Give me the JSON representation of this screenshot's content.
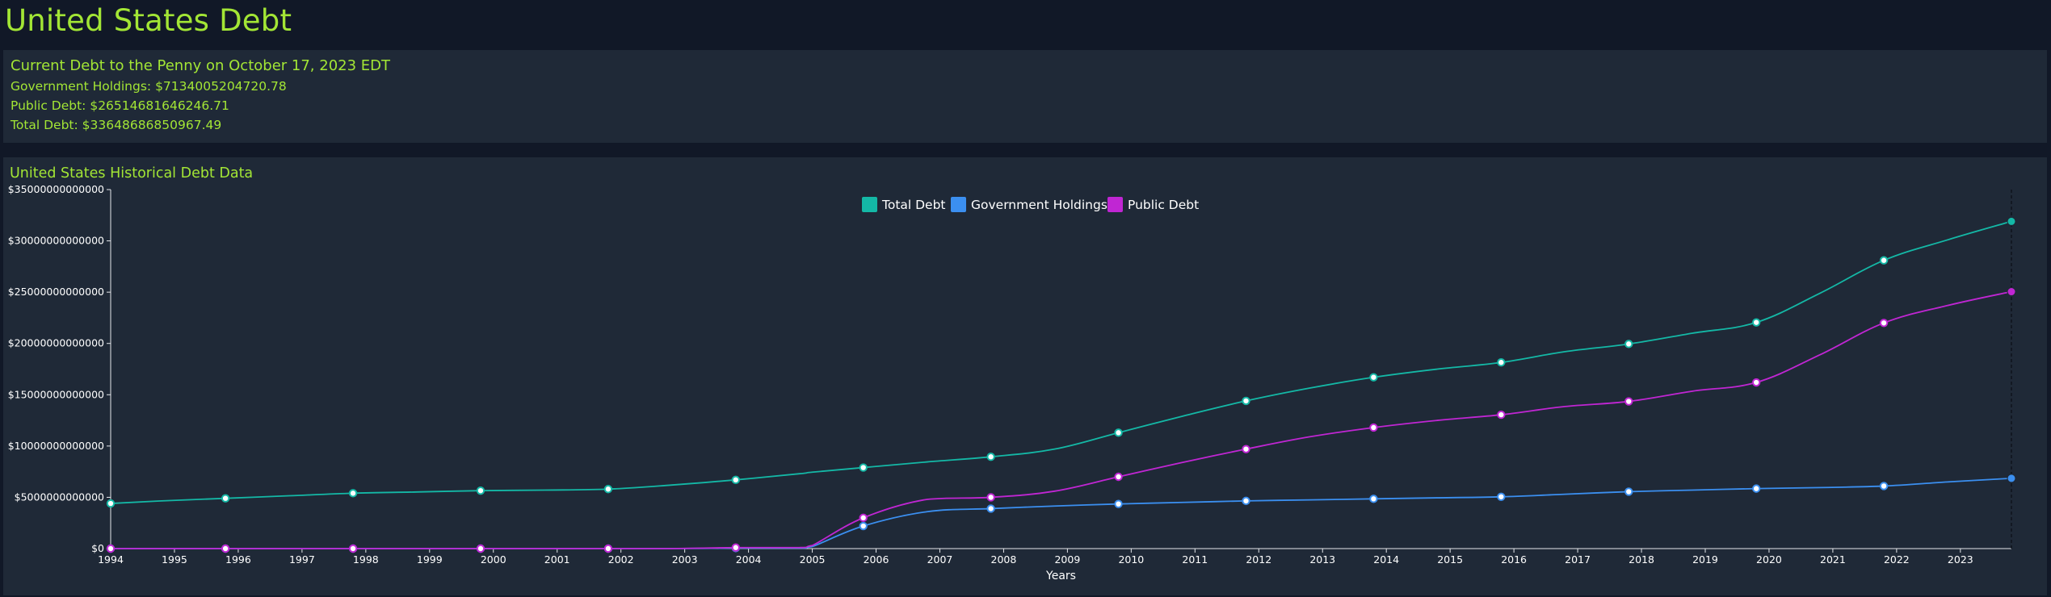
{
  "page": {
    "title": "United States Debt"
  },
  "current": {
    "heading": "Current Debt to the Penny on October 17, 2023 EDT",
    "government_holdings": "Government Holdings: $7134005204720.78",
    "public_debt": "Public Debt: $26514681646246.71",
    "total_debt": "Total Debt: $33648686850967.49"
  },
  "chart_section": {
    "heading": "United States Historical Debt Data"
  },
  "colors": {
    "total": "#14b8a6",
    "holdings": "#3b8ff0",
    "public": "#c026d3",
    "accent": "#a3e635"
  },
  "chart_data": {
    "type": "line",
    "title": "United States Historical Debt Data",
    "xlabel": "Years",
    "ylabel": "",
    "ylim": [
      0,
      35000000000000
    ],
    "xlim": [
      1994.0,
      2023.8
    ],
    "y_ticks": [
      0,
      5000000000000,
      10000000000000,
      15000000000000,
      20000000000000,
      25000000000000,
      30000000000000,
      35000000000000
    ],
    "y_tick_labels": [
      "$0",
      "$5000000000000",
      "$10000000000000",
      "$15000000000000",
      "$20000000000000",
      "$25000000000000",
      "$30000000000000",
      "$35000000000000"
    ],
    "x_ticks": [
      "1994",
      "1995",
      "1996",
      "1997",
      "1998",
      "1999",
      "2000",
      "2001",
      "2002",
      "2003",
      "2004",
      "2005",
      "2006",
      "2007",
      "2008",
      "2009",
      "2010",
      "2011",
      "2012",
      "2013",
      "2014",
      "2015",
      "2016",
      "2017",
      "2018",
      "2019",
      "2020",
      "2021",
      "2022",
      "2023"
    ],
    "legend": [
      "Total Debt",
      "Government Holdings",
      "Public Debt"
    ],
    "legend_position": "top-center",
    "grid": false,
    "x": [
      1994.0,
      1994.8,
      1995.8,
      1996.8,
      1997.8,
      1998.8,
      1999.8,
      2000.8,
      2001.8,
      2002.8,
      2003.8,
      2004.8,
      2005.0,
      2005.8,
      2006.8,
      2007.8,
      2008.8,
      2009.8,
      2010.8,
      2011.8,
      2012.8,
      2013.8,
      2014.8,
      2015.8,
      2016.8,
      2017.8,
      2018.8,
      2019.8,
      2020.8,
      2021.8,
      2022.8,
      2023.8
    ],
    "series": [
      {
        "name": "Total Debt",
        "values": [
          4400000000000,
          4650000000000,
          4900000000000,
          5150000000000,
          5400000000000,
          5520000000000,
          5650000000000,
          5700000000000,
          5800000000000,
          6200000000000,
          6700000000000,
          7300000000000,
          7450000000000,
          7900000000000,
          8450000000000,
          8950000000000,
          9700000000000,
          11300000000000,
          12900000000000,
          14400000000000,
          15650000000000,
          16700000000000,
          17500000000000,
          18150000000000,
          19200000000000,
          19950000000000,
          21000000000000,
          22050000000000,
          24900000000000,
          28100000000000,
          30100000000000,
          31900000000000
        ],
        "markers": [
          1994.0,
          1995.8,
          1997.8,
          1999.8,
          2001.8,
          2003.8,
          2005.8,
          2007.8,
          2009.8,
          2011.8,
          2013.8,
          2015.8,
          2017.8,
          2019.8,
          2021.8,
          2023.8
        ]
      },
      {
        "name": "Government Holdings",
        "values": [
          0,
          0,
          0,
          0,
          0,
          0,
          0,
          0,
          0,
          0,
          50000000000,
          50000000000,
          200000000000,
          2200000000000,
          3600000000000,
          3900000000000,
          4150000000000,
          4350000000000,
          4500000000000,
          4650000000000,
          4750000000000,
          4850000000000,
          4950000000000,
          5050000000000,
          5300000000000,
          5550000000000,
          5700000000000,
          5850000000000,
          5950000000000,
          6100000000000,
          6500000000000,
          6850000000000
        ],
        "markers": [
          1994.0,
          1995.8,
          1997.8,
          1999.8,
          2001.8,
          2003.8,
          2005.8,
          2007.8,
          2009.8,
          2011.8,
          2013.8,
          2015.8,
          2017.8,
          2019.8,
          2021.8,
          2023.8
        ]
      },
      {
        "name": "Public Debt",
        "values": [
          0,
          0,
          0,
          0,
          0,
          0,
          0,
          0,
          0,
          0,
          100000000000,
          100000000000,
          300000000000,
          3000000000000,
          4800000000000,
          5000000000000,
          5600000000000,
          7000000000000,
          8400000000000,
          9700000000000,
          10900000000000,
          11800000000000,
          12500000000000,
          13050000000000,
          13850000000000,
          14350000000000,
          15350000000000,
          16200000000000,
          18900000000000,
          22000000000000,
          23700000000000,
          25050000000000
        ],
        "markers": [
          1994.0,
          1995.8,
          1997.8,
          1999.8,
          2001.8,
          2003.8,
          2005.8,
          2007.8,
          2009.8,
          2011.8,
          2013.8,
          2015.8,
          2017.8,
          2019.8,
          2021.8,
          2023.8
        ]
      }
    ]
  }
}
